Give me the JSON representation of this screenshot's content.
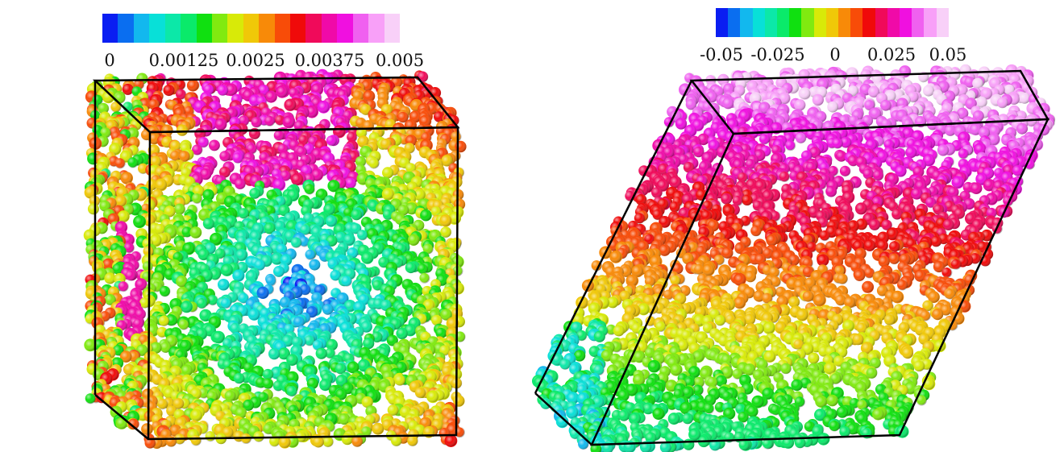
{
  "palette": [
    "#0a1ef2",
    "#0a6ef0",
    "#12b8ee",
    "#08e0d8",
    "#0ce8a8",
    "#0aea6a",
    "#10e010",
    "#80ea10",
    "#d8ea08",
    "#f0c808",
    "#f88a08",
    "#f84c08",
    "#f00a0a",
    "#f00a5a",
    "#f00aa8",
    "#f010e0",
    "#f060f0",
    "#f8a0f8",
    "#f8d0f8"
  ],
  "left_panel": {
    "colorbar_ticks": [
      "0",
      "0.00125",
      "0.0025",
      "0.00375",
      "0.005"
    ]
  },
  "right_panel": {
    "colorbar_ticks": [
      "-0.05",
      "-0.025",
      "0",
      "0.025",
      "0.05"
    ]
  }
}
